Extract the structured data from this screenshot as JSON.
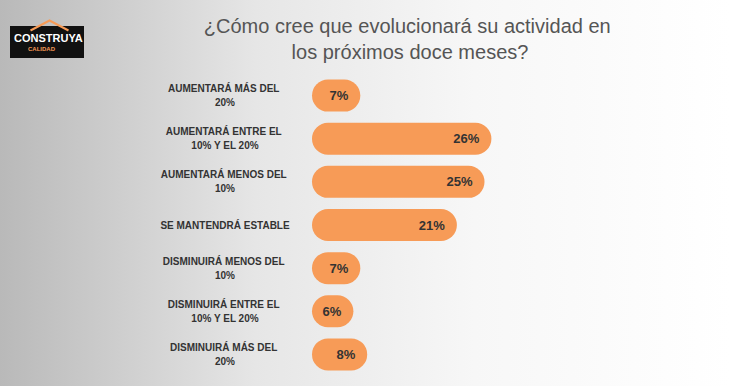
{
  "chart_data": {
    "type": "bar",
    "orientation": "horizontal",
    "title": "¿Cómo cree que evolucionará su actividad en los próximos doce meses?",
    "annotations": [
      "CONSTRUYA",
      "CALIDAD"
    ],
    "categories": [
      "AUMENTARÁ MÁS DEL 20%",
      "AUMENTARÁ ENTRE EL 10% Y EL 20%",
      "AUMENTARÁ MENOS DEL 10%",
      "SE MANTENDRÁ ESTABLE",
      "DISMINUIRÁ MENOS DEL 10%",
      "DISMINUIRÁ ENTRE EL 10% Y EL 20%",
      "DISMINUIRÁ MÁS DEL 20%"
    ],
    "values": [
      7,
      26,
      25,
      21,
      7,
      6,
      8
    ],
    "value_labels": [
      "7%",
      "26%",
      "25%",
      "21%",
      "7%",
      "6%",
      "8%"
    ],
    "color": "#f79b57",
    "xlim": [
      0,
      30
    ],
    "data_labels": true,
    "tick_labels": "y",
    "grid": false
  }
}
